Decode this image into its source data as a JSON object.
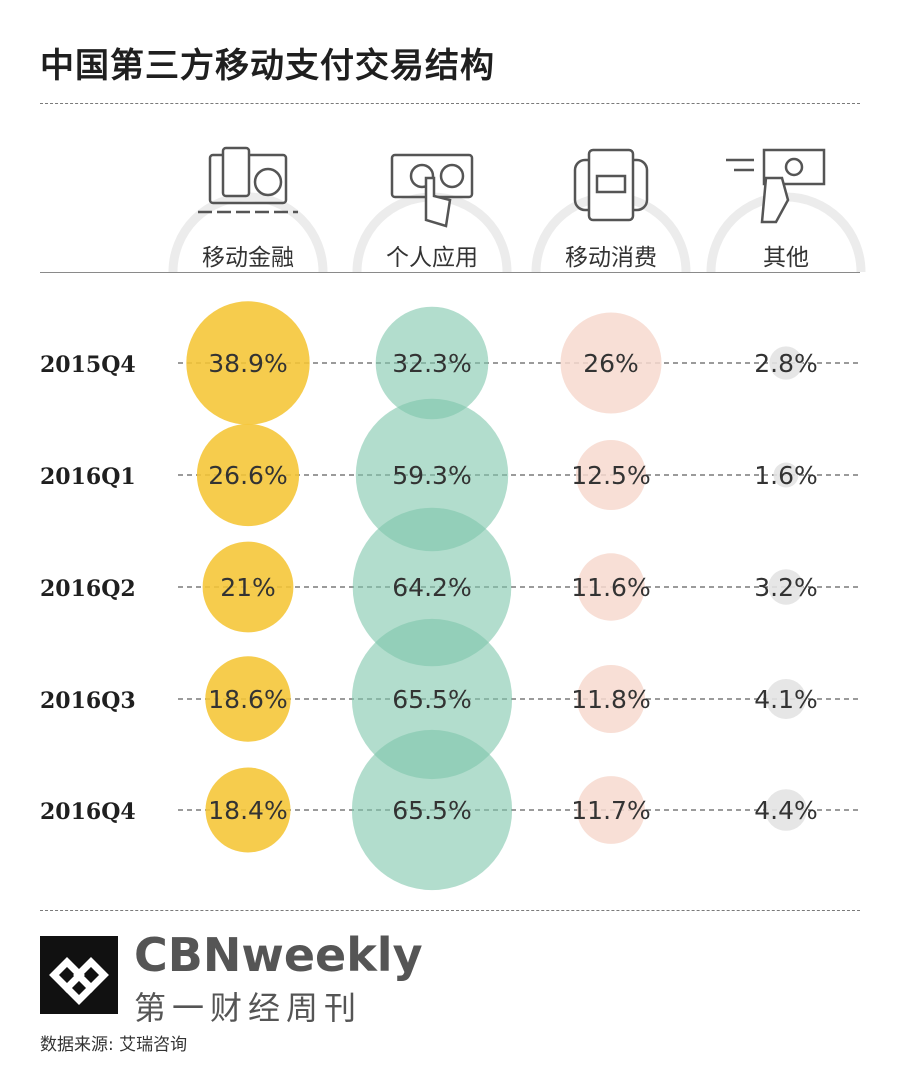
{
  "title": "中国第三方移动支付交易结构",
  "chart_data": {
    "type": "bubble-matrix",
    "title": "中国第三方移动支付交易结构",
    "unit": "%",
    "categories": [
      "移动金融",
      "个人应用",
      "移动消费",
      "其他"
    ],
    "category_icons": [
      "mobile-finance-icon",
      "personal-app-icon",
      "mobile-consumption-icon",
      "other-payment-icon"
    ],
    "rows": [
      "2015Q4",
      "2016Q1",
      "2016Q2",
      "2016Q3",
      "2016Q4"
    ],
    "series": [
      {
        "name": "2015Q4",
        "values": [
          38.9,
          32.3,
          26,
          2.8
        ],
        "labels": [
          "38.9%",
          "32.3%",
          "26%",
          "2.8%"
        ]
      },
      {
        "name": "2016Q1",
        "values": [
          26.6,
          59.3,
          12.5,
          1.6
        ],
        "labels": [
          "26.6%",
          "59.3%",
          "12.5%",
          "1.6%"
        ]
      },
      {
        "name": "2016Q2",
        "values": [
          21,
          64.2,
          11.6,
          3.2
        ],
        "labels": [
          "21%",
          "64.2%",
          "11.6%",
          "3.2%"
        ]
      },
      {
        "name": "2016Q3",
        "values": [
          18.6,
          65.5,
          11.8,
          4.1
        ],
        "labels": [
          "18.6%",
          "65.5%",
          "11.8%",
          "4.1%"
        ]
      },
      {
        "name": "2016Q4",
        "values": [
          18.4,
          65.5,
          11.7,
          4.4
        ],
        "labels": [
          "18.4%",
          "65.5%",
          "11.7%",
          "4.4%"
        ]
      }
    ],
    "colors": [
      "#f5c534",
      "#7fc6ac",
      "#f7d9cf",
      "#e3e3e3"
    ]
  },
  "footer": {
    "brand_en": "CBNweekly",
    "brand_cn": "第一财经周刊",
    "source": "数据来源: 艾瑞咨询"
  }
}
